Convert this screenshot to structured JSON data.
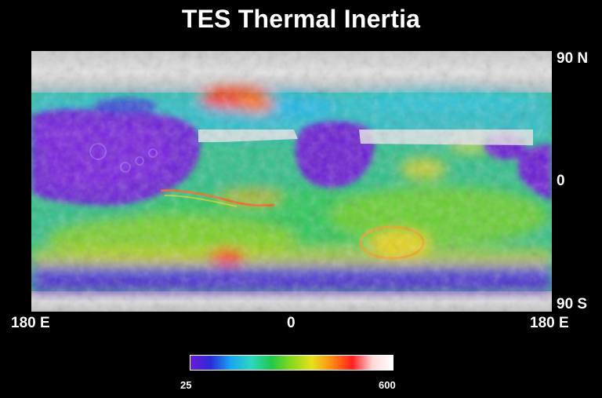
{
  "title": "TES Thermal Inertia",
  "lat_labels": {
    "north": "90 N",
    "equator": "0",
    "south": "90 S"
  },
  "lon_labels": {
    "left": "180 E",
    "center": "0",
    "right": "180 E"
  },
  "colorbar": {
    "min_label": "25",
    "max_label": "600",
    "stops": [
      "#6a1bd6",
      "#2b2bd8",
      "#19a6f0",
      "#2ed6c2",
      "#20c84a",
      "#8ad81c",
      "#e6e21c",
      "#ff8a12",
      "#ff1f1f",
      "#ffd8d8",
      "#ffffff"
    ]
  }
}
